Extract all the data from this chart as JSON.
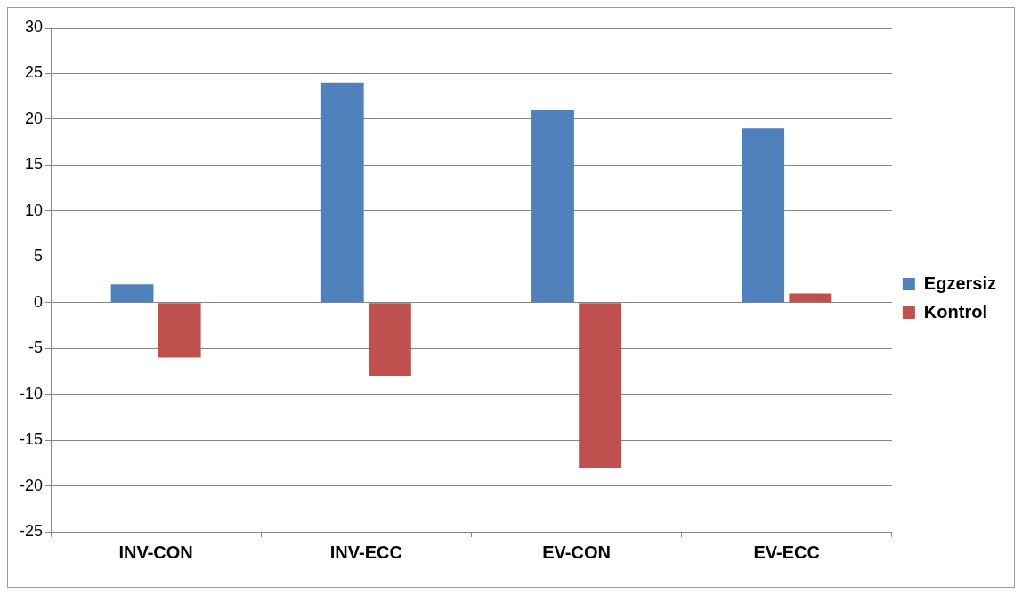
{
  "chart_data": {
    "type": "bar",
    "categories": [
      "INV-CON",
      "INV-ECC",
      "EV-CON",
      "EV-ECC"
    ],
    "series": [
      {
        "name": "Egzersiz",
        "color": "#4f81bd",
        "values": [
          2,
          24,
          21,
          19
        ]
      },
      {
        "name": "Kontrol",
        "color": "#c0504d",
        "values": [
          -6,
          -8,
          -18,
          1
        ]
      }
    ],
    "ylim": [
      -25,
      30
    ],
    "yticks": [
      -25,
      -20,
      -15,
      -10,
      -5,
      0,
      5,
      10,
      15,
      20,
      25,
      30
    ],
    "grid": "y",
    "legend": "right"
  }
}
